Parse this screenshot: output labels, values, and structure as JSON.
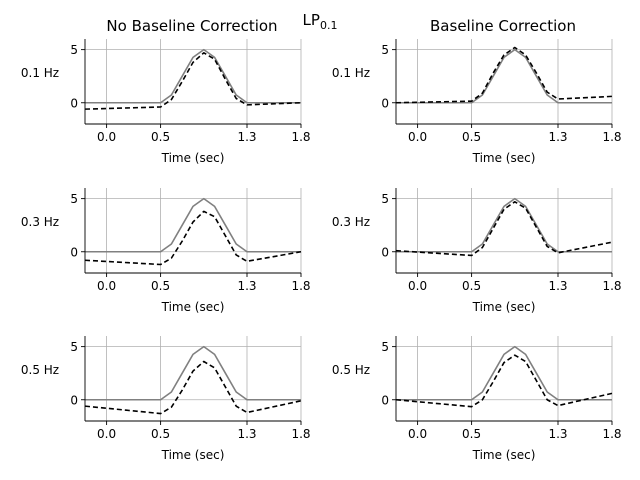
{
  "figure": {
    "suptitle_main": "LP",
    "suptitle_sub": "0.1"
  },
  "chart_data": [
    {
      "type": "line",
      "row": 0,
      "col": 0,
      "title": "No Baseline Correction",
      "row_label": "0.1 Hz",
      "xlabel": "Time (sec)",
      "xlim": [
        -0.2,
        1.8
      ],
      "ylim": [
        -2,
        6
      ],
      "xticks": [
        0.0,
        0.5,
        1.3,
        1.8
      ],
      "xtick_labels": [
        "0.0",
        "0.5",
        "1.3",
        "1.8"
      ],
      "yticks": [
        0,
        5
      ],
      "ytick_labels": [
        "0",
        "5"
      ],
      "grid": true,
      "series": [
        {
          "style": "solid",
          "color": "#808080",
          "x": [
            -0.2,
            0.5,
            0.6,
            0.7,
            0.8,
            0.9,
            1.0,
            1.1,
            1.2,
            1.3,
            1.8
          ],
          "y": [
            0,
            0,
            0.73,
            2.5,
            4.27,
            5.0,
            4.27,
            2.5,
            0.73,
            0,
            0
          ]
        },
        {
          "style": "dashed",
          "color": "#000000",
          "x": [
            -0.2,
            0.5,
            0.6,
            0.7,
            0.8,
            0.9,
            1.0,
            1.1,
            1.2,
            1.3,
            1.8
          ],
          "y": [
            -0.6,
            -0.4,
            0.3,
            2.0,
            3.8,
            4.7,
            4.1,
            2.2,
            0.4,
            -0.2,
            0.0
          ]
        }
      ]
    },
    {
      "type": "line",
      "row": 0,
      "col": 1,
      "title": "Baseline Correction",
      "row_label": "0.1 Hz",
      "xlabel": "Time (sec)",
      "xlim": [
        -0.2,
        1.8
      ],
      "ylim": [
        -2,
        6
      ],
      "xticks": [
        0.0,
        0.5,
        1.3,
        1.8
      ],
      "xtick_labels": [
        "0.0",
        "0.5",
        "1.3",
        "1.8"
      ],
      "yticks": [
        0,
        5
      ],
      "ytick_labels": [
        "0",
        "5"
      ],
      "grid": true,
      "series": [
        {
          "style": "solid",
          "color": "#808080",
          "x": [
            -0.2,
            0.5,
            0.6,
            0.7,
            0.8,
            0.9,
            1.0,
            1.1,
            1.2,
            1.3,
            1.8
          ],
          "y": [
            0,
            0,
            0.73,
            2.5,
            4.27,
            5.0,
            4.27,
            2.5,
            0.73,
            0,
            0
          ]
        },
        {
          "style": "dashed",
          "color": "#000000",
          "x": [
            -0.2,
            0.5,
            0.6,
            0.7,
            0.8,
            0.9,
            1.0,
            1.1,
            1.2,
            1.3,
            1.8
          ],
          "y": [
            0.0,
            0.15,
            0.9,
            2.8,
            4.5,
            5.2,
            4.5,
            2.8,
            1.0,
            0.35,
            0.6
          ]
        }
      ]
    },
    {
      "type": "line",
      "row": 1,
      "col": 0,
      "title": "",
      "row_label": "0.3 Hz",
      "xlabel": "Time (sec)",
      "xlim": [
        -0.2,
        1.8
      ],
      "ylim": [
        -2,
        6
      ],
      "xticks": [
        0.0,
        0.5,
        1.3,
        1.8
      ],
      "xtick_labels": [
        "0.0",
        "0.5",
        "1.3",
        "1.8"
      ],
      "yticks": [
        0,
        5
      ],
      "ytick_labels": [
        "0",
        "5"
      ],
      "grid": true,
      "series": [
        {
          "style": "solid",
          "color": "#808080",
          "x": [
            -0.2,
            0.5,
            0.6,
            0.7,
            0.8,
            0.9,
            1.0,
            1.1,
            1.2,
            1.3,
            1.8
          ],
          "y": [
            0,
            0,
            0.73,
            2.5,
            4.27,
            5.0,
            4.27,
            2.5,
            0.73,
            0,
            0
          ]
        },
        {
          "style": "dashed",
          "color": "#000000",
          "x": [
            -0.2,
            0.5,
            0.6,
            0.7,
            0.8,
            0.9,
            1.0,
            1.1,
            1.2,
            1.3,
            1.8
          ],
          "y": [
            -0.8,
            -1.2,
            -0.6,
            1.0,
            2.8,
            3.8,
            3.3,
            1.5,
            -0.3,
            -0.9,
            0.0
          ]
        }
      ]
    },
    {
      "type": "line",
      "row": 1,
      "col": 1,
      "title": "",
      "row_label": "0.3 Hz",
      "xlabel": "Time (sec)",
      "xlim": [
        -0.2,
        1.8
      ],
      "ylim": [
        -2,
        6
      ],
      "xticks": [
        0.0,
        0.5,
        1.3,
        1.8
      ],
      "xtick_labels": [
        "0.0",
        "0.5",
        "1.3",
        "1.8"
      ],
      "yticks": [
        0,
        5
      ],
      "ytick_labels": [
        "0",
        "5"
      ],
      "grid": true,
      "series": [
        {
          "style": "solid",
          "color": "#808080",
          "x": [
            -0.2,
            0.5,
            0.6,
            0.7,
            0.8,
            0.9,
            1.0,
            1.1,
            1.2,
            1.3,
            1.8
          ],
          "y": [
            0,
            0,
            0.73,
            2.5,
            4.27,
            5.0,
            4.27,
            2.5,
            0.73,
            0,
            0
          ]
        },
        {
          "style": "dashed",
          "color": "#000000",
          "x": [
            -0.2,
            0.5,
            0.6,
            0.7,
            0.8,
            0.9,
            1.0,
            1.1,
            1.2,
            1.3,
            1.8
          ],
          "y": [
            0.1,
            -0.35,
            0.4,
            2.2,
            4.0,
            4.7,
            4.1,
            2.3,
            0.5,
            -0.1,
            0.9
          ]
        }
      ]
    },
    {
      "type": "line",
      "row": 2,
      "col": 0,
      "title": "",
      "row_label": "0.5 Hz",
      "xlabel": "Time (sec)",
      "xlim": [
        -0.2,
        1.8
      ],
      "ylim": [
        -2,
        6
      ],
      "xticks": [
        0.0,
        0.5,
        1.3,
        1.8
      ],
      "xtick_labels": [
        "0.0",
        "0.5",
        "1.3",
        "1.8"
      ],
      "yticks": [
        0,
        5
      ],
      "ytick_labels": [
        "0",
        "5"
      ],
      "grid": true,
      "series": [
        {
          "style": "solid",
          "color": "#808080",
          "x": [
            -0.2,
            0.5,
            0.6,
            0.7,
            0.8,
            0.9,
            1.0,
            1.1,
            1.2,
            1.3,
            1.8
          ],
          "y": [
            0,
            0,
            0.73,
            2.5,
            4.27,
            5.0,
            4.27,
            2.5,
            0.73,
            0,
            0
          ]
        },
        {
          "style": "dashed",
          "color": "#000000",
          "x": [
            -0.2,
            0.5,
            0.6,
            0.7,
            0.8,
            0.9,
            1.0,
            1.1,
            1.2,
            1.3,
            1.8
          ],
          "y": [
            -0.6,
            -1.3,
            -0.7,
            0.9,
            2.7,
            3.6,
            3.0,
            1.2,
            -0.6,
            -1.2,
            -0.1
          ]
        }
      ]
    },
    {
      "type": "line",
      "row": 2,
      "col": 1,
      "title": "",
      "row_label": "0.5 Hz",
      "xlabel": "Time (sec)",
      "xlim": [
        -0.2,
        1.8
      ],
      "ylim": [
        -2,
        6
      ],
      "xticks": [
        0.0,
        0.5,
        1.3,
        1.8
      ],
      "xtick_labels": [
        "0.0",
        "0.5",
        "1.3",
        "1.8"
      ],
      "yticks": [
        0,
        5
      ],
      "ytick_labels": [
        "0",
        "5"
      ],
      "grid": true,
      "series": [
        {
          "style": "solid",
          "color": "#808080",
          "x": [
            -0.2,
            0.5,
            0.6,
            0.7,
            0.8,
            0.9,
            1.0,
            1.1,
            1.2,
            1.3,
            1.8
          ],
          "y": [
            0,
            0,
            0.73,
            2.5,
            4.27,
            5.0,
            4.27,
            2.5,
            0.73,
            0,
            0
          ]
        },
        {
          "style": "dashed",
          "color": "#000000",
          "x": [
            -0.2,
            0.5,
            0.6,
            0.7,
            0.8,
            0.9,
            1.0,
            1.1,
            1.2,
            1.3,
            1.8
          ],
          "y": [
            0.0,
            -0.65,
            0.0,
            1.7,
            3.5,
            4.2,
            3.6,
            1.8,
            0.0,
            -0.55,
            0.6
          ]
        }
      ]
    }
  ]
}
